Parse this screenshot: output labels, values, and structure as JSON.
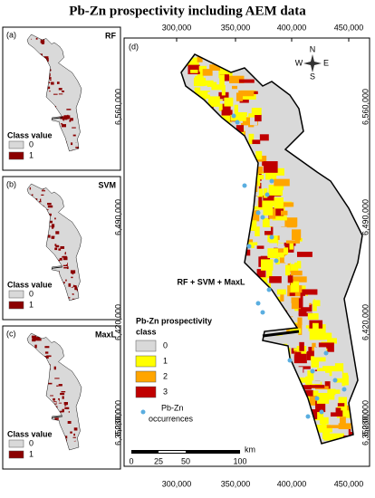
{
  "title": "Pb-Zn prospectivity including AEM data",
  "panels": [
    {
      "tag": "(a)",
      "model": "RF",
      "legend_title": "Class value",
      "classes": [
        "0",
        "1"
      ]
    },
    {
      "tag": "(b)",
      "model": "SVM",
      "legend_title": "Class value",
      "classes": [
        "0",
        "1"
      ]
    },
    {
      "tag": "(c)",
      "model": "MaxL",
      "legend_title": "Class value",
      "classes": [
        "0",
        "1"
      ]
    }
  ],
  "main": {
    "tag": "(d)",
    "label": "RF + SVM + MaxL",
    "x_ticks": [
      "300,000",
      "350,000",
      "400,000",
      "450,000"
    ],
    "y_ticks": [
      "6,560,000",
      "6,490,000",
      "6,420,000",
      "6,350,000",
      "6,280,000"
    ],
    "legend": {
      "title": [
        "Pb-Zn prospectivity",
        "class"
      ],
      "classes": [
        "0",
        "1",
        "2",
        "3"
      ],
      "occurrences": [
        "Pb-Zn",
        "occurrences"
      ]
    },
    "scale": {
      "labels": [
        "0",
        "25",
        "50",
        "100"
      ],
      "unit": "km"
    },
    "compass": [
      "N",
      "E",
      "S",
      "W"
    ]
  }
}
